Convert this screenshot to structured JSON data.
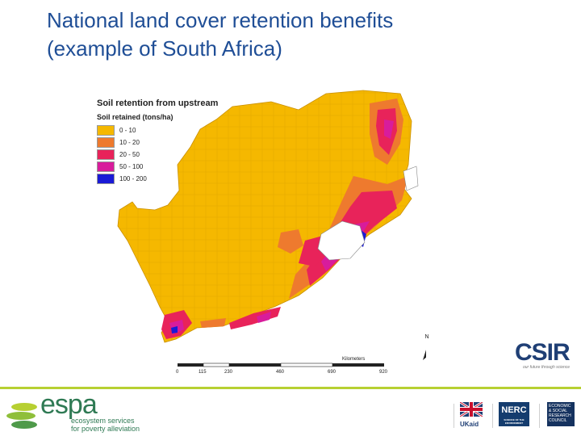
{
  "slide": {
    "title_line1": "National land cover retention benefits",
    "title_line2": "(example of South Africa)"
  },
  "map": {
    "title": "Soil retention from upstream",
    "legend_title": "Soil retained (tons/ha)",
    "legend": [
      {
        "label": "0 - 10",
        "color": "#f5b800"
      },
      {
        "label": "10 - 20",
        "color": "#ee7a2e"
      },
      {
        "label": "20 - 50",
        "color": "#e8235a"
      },
      {
        "label": "50 - 100",
        "color": "#d81c9c"
      },
      {
        "label": "100 - 200",
        "color": "#1a1ad6"
      }
    ],
    "north_label": "N",
    "scale_unit": "Kilometers",
    "scale_ticks": [
      "0",
      "115",
      "230",
      "460",
      "690",
      "920"
    ]
  },
  "logos": {
    "csir_text": "CSIR",
    "csir_tagline": "our future through science",
    "espa_word": "espa",
    "espa_sub1": "ecosystem services",
    "espa_sub2": "for poverty alleviation",
    "ukaid": "UKaid",
    "nerc": "NERC",
    "nerc_sub": "SCIENCE OF THE ENVIRONMENT",
    "esrc": "ECONOMIC & SOCIAL RESEARCH COUNCIL"
  },
  "colors": {
    "title": "#1f4e96",
    "rule": "#b7d032",
    "ocean": "#ffffff",
    "lesotho": "#ffffff"
  }
}
